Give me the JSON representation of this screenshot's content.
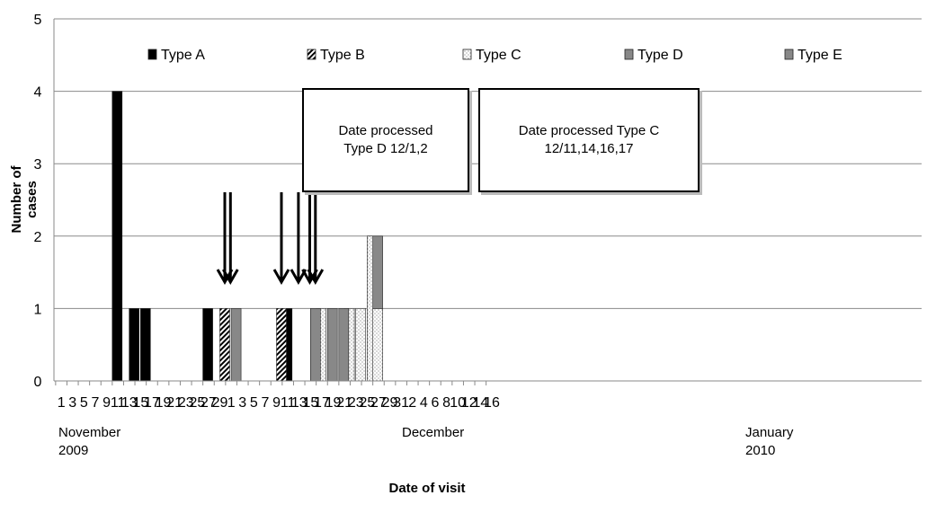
{
  "chart_data": {
    "type": "bar",
    "stacked": true,
    "xlabel": "Date of visit",
    "ylabel": "Number of cases",
    "ylim": [
      0,
      5
    ],
    "yticks": [
      0,
      1,
      2,
      3,
      4,
      5
    ],
    "grid": true,
    "legend_position": "top",
    "xtick_labels": [
      "1",
      "3",
      "5",
      "7",
      "9",
      "11",
      "13",
      "15",
      "17",
      "19",
      "21",
      "23",
      "25",
      "27",
      "29",
      "1",
      "3",
      "5",
      "7",
      "9",
      "11",
      "13",
      "15",
      "17",
      "19",
      "21",
      "23",
      "25",
      "27",
      "29",
      "31",
      "2",
      "4",
      "6",
      "8",
      "10",
      "12",
      "14",
      "16"
    ],
    "month_labels": [
      {
        "month": "November",
        "year": "2009"
      },
      {
        "month": "December",
        "year": ""
      },
      {
        "month": "January",
        "year": "2010"
      }
    ],
    "series": [
      {
        "name": "Type A",
        "color": "#000000",
        "pattern": "solid",
        "data": [
          {
            "x": "2009-11-12",
            "y": 4
          },
          {
            "x": "2009-11-15",
            "y": 1
          },
          {
            "x": "2009-11-17",
            "y": 1
          },
          {
            "x": "2009-11-28",
            "y": 1
          },
          {
            "x": "2009-12-12",
            "y": 1
          }
        ]
      },
      {
        "name": "Type B",
        "color": "#000000",
        "pattern": "diagonal",
        "data": [
          {
            "x": "2009-12-01",
            "y": 1
          },
          {
            "x": "2009-12-11",
            "y": 1
          }
        ]
      },
      {
        "name": "Type C",
        "color": "#ffffff",
        "pattern": "dotted",
        "data": [
          {
            "x": "2009-12-18",
            "y": 1
          },
          {
            "x": "2009-12-23",
            "y": 1
          },
          {
            "x": "2009-12-25",
            "y": 1
          },
          {
            "x": "2009-12-27",
            "y": 2
          },
          {
            "x": "2009-12-28",
            "y": 1
          }
        ]
      },
      {
        "name": "Type D",
        "color": "#888888",
        "pattern": "solid",
        "data": [
          {
            "x": "2009-12-03",
            "y": 1
          },
          {
            "x": "2009-12-17",
            "y": 1
          },
          {
            "x": "2009-12-20",
            "y": 1
          },
          {
            "x": "2009-12-22",
            "y": 1
          },
          {
            "x": "2009-12-28",
            "y": 1
          }
        ]
      },
      {
        "name": "Type E",
        "color": "#888888",
        "pattern": "solid",
        "data": []
      }
    ],
    "annotations": [
      {
        "text_line1": "Date processed",
        "text_line2": "Type D 12/1,2",
        "arrow_dates": [
          "2009-12-01",
          "2009-12-02"
        ]
      },
      {
        "text_line1": "Date processed Type C",
        "text_line2": "12/11,14,16,17",
        "arrow_dates": [
          "2009-12-11",
          "2009-12-14",
          "2009-12-16",
          "2009-12-17"
        ]
      }
    ]
  }
}
